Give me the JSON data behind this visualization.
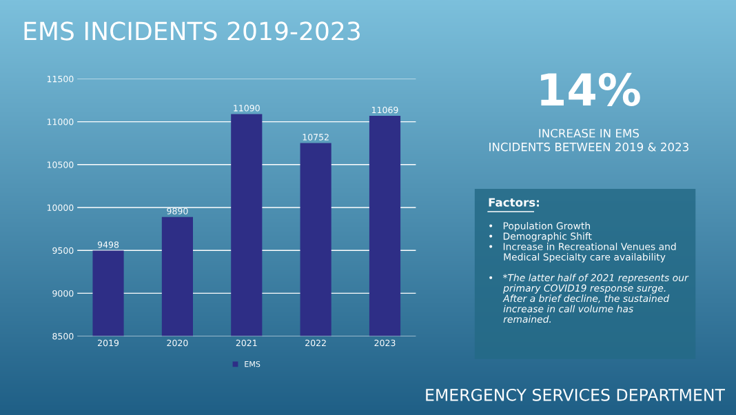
{
  "chart_data": {
    "type": "bar",
    "title": "EMS INCIDENTS 2019-2023",
    "categories": [
      "2019",
      "2020",
      "2021",
      "2022",
      "2023"
    ],
    "series": [
      {
        "name": "EMS",
        "color": "#2e2e86",
        "values": [
          9498,
          9890,
          11090,
          10752,
          11069
        ]
      }
    ],
    "ylim": [
      8500,
      11500
    ],
    "yticks": [
      8500,
      9000,
      9500,
      10000,
      10500,
      11000,
      11500
    ],
    "grid": "y",
    "legend": "bottom",
    "data_labels": true,
    "annotations": [
      "14%",
      "INCREASE IN EMS\nINCIDENTS BETWEEN 2019 & 2023",
      "Factors:",
      "•   Population Growth\n•   Demographic Shift\n•   Increase in Recreational Venues and\n     Medical Specialty care availability",
      "•   *The latter half of 2021 represents our\n     primary COVID19 response surge.\n     After a brief decline, the sustained\n     increase in call volume has\n     remained.",
      "EMERGENCY SERVICES DEPARTMENT"
    ]
  }
}
